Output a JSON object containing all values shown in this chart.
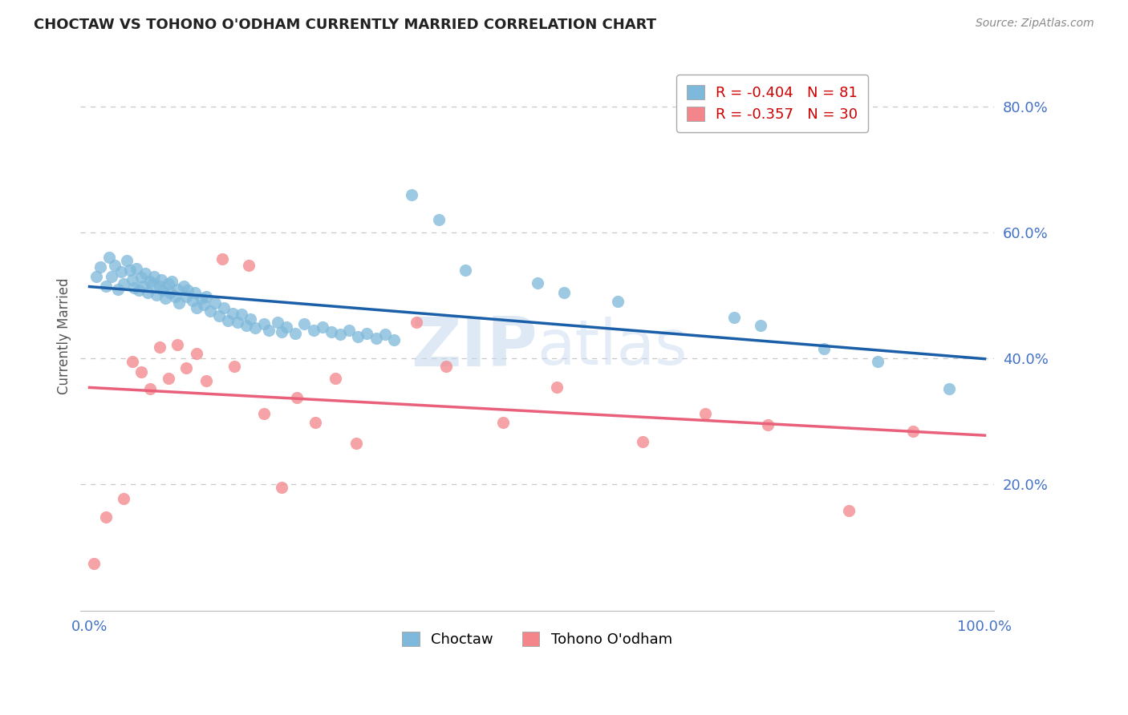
{
  "title": "CHOCTAW VS TOHONO O'ODHAM CURRENTLY MARRIED CORRELATION CHART",
  "source_text": "Source: ZipAtlas.com",
  "ylabel": "Currently Married",
  "watermark": "ZIPatlas",
  "choctaw_color": "#7eb8da",
  "tohono_color": "#f4858a",
  "trend_blue": "#1a5fa8",
  "trend_pink": "#e8607a",
  "background_color": "#ffffff",
  "R_blue": -0.404,
  "N_blue": 81,
  "R_pink": -0.357,
  "N_pink": 30,
  "yticks": [
    0.2,
    0.4,
    0.6,
    0.8
  ],
  "choctaw_x": [
    0.008,
    0.012,
    0.018,
    0.022,
    0.025,
    0.028,
    0.032,
    0.035,
    0.038,
    0.042,
    0.045,
    0.048,
    0.05,
    0.052,
    0.055,
    0.058,
    0.06,
    0.062,
    0.065,
    0.068,
    0.07,
    0.072,
    0.075,
    0.078,
    0.08,
    0.082,
    0.085,
    0.088,
    0.09,
    0.092,
    0.095,
    0.098,
    0.1,
    0.105,
    0.108,
    0.11,
    0.115,
    0.118,
    0.12,
    0.125,
    0.128,
    0.13,
    0.135,
    0.14,
    0.145,
    0.15,
    0.155,
    0.16,
    0.165,
    0.17,
    0.175,
    0.18,
    0.185,
    0.195,
    0.2,
    0.21,
    0.215,
    0.22,
    0.23,
    0.24,
    0.25,
    0.26,
    0.27,
    0.28,
    0.29,
    0.3,
    0.31,
    0.32,
    0.33,
    0.34,
    0.36,
    0.39,
    0.42,
    0.5,
    0.53,
    0.59,
    0.72,
    0.75,
    0.82,
    0.88,
    0.96
  ],
  "choctaw_y": [
    0.53,
    0.545,
    0.515,
    0.56,
    0.53,
    0.548,
    0.51,
    0.538,
    0.518,
    0.555,
    0.54,
    0.525,
    0.512,
    0.542,
    0.508,
    0.528,
    0.515,
    0.535,
    0.505,
    0.522,
    0.518,
    0.53,
    0.5,
    0.515,
    0.525,
    0.508,
    0.495,
    0.518,
    0.505,
    0.522,
    0.498,
    0.51,
    0.488,
    0.515,
    0.498,
    0.508,
    0.492,
    0.505,
    0.48,
    0.495,
    0.485,
    0.498,
    0.475,
    0.488,
    0.468,
    0.48,
    0.46,
    0.472,
    0.458,
    0.47,
    0.452,
    0.462,
    0.448,
    0.455,
    0.445,
    0.458,
    0.442,
    0.45,
    0.44,
    0.455,
    0.445,
    0.45,
    0.442,
    0.438,
    0.445,
    0.435,
    0.44,
    0.432,
    0.438,
    0.43,
    0.66,
    0.62,
    0.54,
    0.52,
    0.505,
    0.49,
    0.465,
    0.452,
    0.415,
    0.395,
    0.352
  ],
  "tohono_x": [
    0.005,
    0.018,
    0.038,
    0.048,
    0.058,
    0.068,
    0.078,
    0.088,
    0.098,
    0.108,
    0.12,
    0.13,
    0.148,
    0.162,
    0.178,
    0.195,
    0.215,
    0.232,
    0.252,
    0.275,
    0.298,
    0.365,
    0.398,
    0.462,
    0.522,
    0.618,
    0.688,
    0.758,
    0.848,
    0.92
  ],
  "tohono_y": [
    0.075,
    0.148,
    0.178,
    0.395,
    0.378,
    0.352,
    0.418,
    0.368,
    0.422,
    0.385,
    0.408,
    0.365,
    0.558,
    0.388,
    0.548,
    0.312,
    0.195,
    0.338,
    0.298,
    0.368,
    0.265,
    0.458,
    0.388,
    0.298,
    0.355,
    0.268,
    0.312,
    0.295,
    0.158,
    0.285
  ]
}
